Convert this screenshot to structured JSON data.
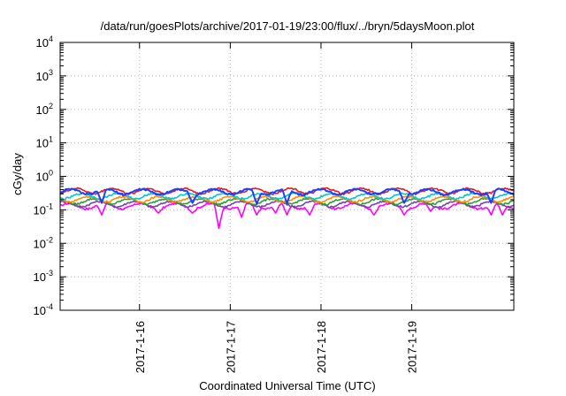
{
  "chart_data": {
    "type": "line",
    "title": "/data/run/goesPlots/archive/2017-01-19/23:00/flux/../bryn/5daysMoon.plot",
    "xlabel": "Coordinated Universal Time (UTC)",
    "ylabel": "cGy/day",
    "xlim": [
      "2017-01-15 03:00",
      "2017-01-20 03:00"
    ],
    "ylim": [
      0.0001,
      10000
    ],
    "yscale": "log",
    "grid": true,
    "x_ticks": [
      {
        "x": "2017-01-16 00:00",
        "label": "2017-1-16"
      },
      {
        "x": "2017-01-17 00:00",
        "label": "2017-1-17"
      },
      {
        "x": "2017-01-18 00:00",
        "label": "2017-1-18"
      },
      {
        "x": "2017-01-19 00:00",
        "label": "2017-1-19"
      }
    ],
    "y_ticks": [
      {
        "y": 0.0001,
        "base": "10",
        "exp": "-4"
      },
      {
        "y": 0.001,
        "base": "10",
        "exp": "-3"
      },
      {
        "y": 0.01,
        "base": "10",
        "exp": "-2"
      },
      {
        "y": 0.1,
        "base": "10",
        "exp": "-1"
      },
      {
        "y": 1,
        "base": "10",
        "exp": "0"
      },
      {
        "y": 10,
        "base": "10",
        "exp": "1"
      },
      {
        "y": 100,
        "base": "10",
        "exp": "2"
      },
      {
        "y": 1000,
        "base": "10",
        "exp": "3"
      },
      {
        "y": 10000,
        "base": "10",
        "exp": "4"
      }
    ],
    "series": [
      {
        "color": "#ff00ff",
        "level": 0.13,
        "dips": [
          [
            "2017-01-15 14:00",
            0.07
          ],
          [
            "2017-01-16 05:00",
            0.08
          ],
          [
            "2017-01-16 14:00",
            0.08
          ],
          [
            "2017-01-16 21:00",
            0.028
          ],
          [
            "2017-01-17 03:00",
            0.06
          ],
          [
            "2017-01-17 07:00",
            0.07
          ],
          [
            "2017-01-17 12:00",
            0.08
          ],
          [
            "2017-01-17 15:00",
            0.07
          ],
          [
            "2017-01-17 21:00",
            0.07
          ],
          [
            "2017-01-18 14:00",
            0.07
          ],
          [
            "2017-01-18 22:00",
            0.07
          ],
          [
            "2017-01-19 05:00",
            0.09
          ],
          [
            "2017-01-19 21:00",
            0.07
          ],
          [
            "2017-01-20 00:00",
            0.07
          ]
        ]
      },
      {
        "color": "#7b3fb0",
        "level": 0.15,
        "dips": []
      },
      {
        "color": "#2ca02c",
        "level": 0.18,
        "dips": []
      },
      {
        "color": "#ff8c00",
        "level": 0.21,
        "dips": []
      },
      {
        "color": "#00c8c8",
        "level": 0.26,
        "dips": []
      },
      {
        "color": "#e41a1c",
        "level": 0.37,
        "dips": []
      },
      {
        "color": "#1f3fff",
        "level": 0.35,
        "dips": [
          [
            "2017-01-15 14:00",
            0.16
          ],
          [
            "2017-01-16 14:00",
            0.16
          ],
          [
            "2017-01-17 07:00",
            0.15
          ],
          [
            "2017-01-17 15:00",
            0.15
          ],
          [
            "2017-01-18 22:00",
            0.16
          ],
          [
            "2017-01-19 21:00",
            0.16
          ]
        ]
      }
    ]
  }
}
